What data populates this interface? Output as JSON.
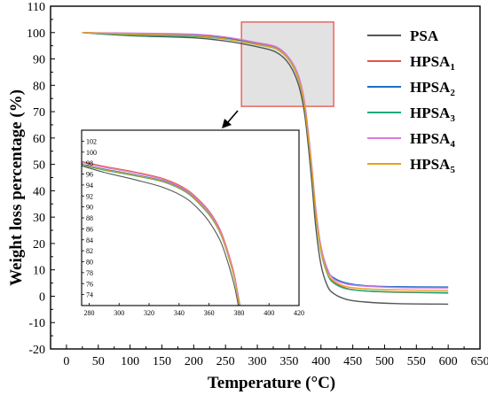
{
  "chart_data": [
    {
      "type": "line",
      "xlabel": "Temperature (°C)",
      "ylabel": "Weight loss percentage (%)",
      "xlim": [
        -25,
        650
      ],
      "ylim": [
        -20,
        110
      ],
      "xticks": [
        0,
        50,
        100,
        150,
        200,
        250,
        300,
        350,
        400,
        450,
        500,
        550,
        600,
        650
      ],
      "yticks": [
        -20,
        -10,
        0,
        10,
        20,
        30,
        40,
        50,
        60,
        70,
        80,
        90,
        100,
        110
      ],
      "legend_position": "top-right",
      "series": [
        {
          "name": "PSA",
          "sub": "",
          "color": "#555555",
          "x": [
            25,
            100,
            200,
            250,
            300,
            330,
            350,
            365,
            375,
            385,
            392,
            400,
            410,
            420,
            440,
            470,
            520,
            600
          ],
          "y": [
            100,
            98.8,
            98,
            96.8,
            94.6,
            92.5,
            88,
            80,
            68,
            45,
            26,
            12,
            4,
            1,
            -1.2,
            -2.2,
            -2.8,
            -3
          ]
        },
        {
          "name": "HPSA",
          "sub": "1",
          "color": "#e8524a",
          "x": [
            25,
            100,
            200,
            250,
            300,
            330,
            350,
            365,
            375,
            385,
            392,
            400,
            410,
            420,
            440,
            470,
            520,
            600
          ],
          "y": [
            100,
            99.6,
            99,
            97.8,
            95.8,
            94.2,
            90,
            83,
            72,
            50,
            32,
            18,
            9,
            5.5,
            3,
            2,
            1.5,
            1.2
          ]
        },
        {
          "name": "HPSA",
          "sub": "2",
          "color": "#1f6fc5",
          "x": [
            25,
            100,
            200,
            250,
            300,
            330,
            350,
            365,
            375,
            385,
            392,
            400,
            410,
            420,
            440,
            470,
            520,
            600
          ],
          "y": [
            100,
            99.5,
            99.2,
            98,
            95.6,
            94,
            89.8,
            82.5,
            71,
            50,
            32,
            18,
            10,
            7,
            5,
            4,
            3.6,
            3.5
          ]
        },
        {
          "name": "HPSA",
          "sub": "3",
          "color": "#1aaa7a",
          "x": [
            25,
            100,
            200,
            250,
            300,
            330,
            350,
            365,
            375,
            385,
            392,
            400,
            410,
            420,
            440,
            470,
            520,
            600
          ],
          "y": [
            100,
            99,
            98.5,
            97.5,
            95.4,
            93.8,
            89.5,
            82,
            70.5,
            49,
            31,
            17,
            8.5,
            5,
            2.8,
            2,
            1.6,
            1.4
          ]
        },
        {
          "name": "HPSA",
          "sub": "4",
          "color": "#d77be0",
          "x": [
            25,
            100,
            200,
            250,
            300,
            330,
            350,
            365,
            375,
            385,
            392,
            400,
            410,
            420,
            440,
            470,
            520,
            600
          ],
          "y": [
            100,
            99.8,
            99.4,
            98.3,
            96.2,
            94.6,
            90.4,
            83.5,
            72.5,
            51,
            33,
            19,
            10.5,
            6.5,
            4.6,
            3.8,
            3.3,
            3.1
          ]
        },
        {
          "name": "HPSA",
          "sub": "5",
          "color": "#e5a21c",
          "x": [
            25,
            100,
            200,
            250,
            300,
            330,
            350,
            365,
            375,
            385,
            392,
            400,
            410,
            420,
            440,
            470,
            520,
            600
          ],
          "y": [
            100,
            99.4,
            98.8,
            97.6,
            95.5,
            93.9,
            89.6,
            82.3,
            70.8,
            49.5,
            31.5,
            17.5,
            9,
            5.8,
            3.6,
            2.8,
            2.4,
            2.2
          ]
        }
      ]
    },
    {
      "type": "line",
      "xlim": [
        275,
        420
      ],
      "ylim": [
        72,
        104
      ],
      "xticks": [
        280,
        300,
        320,
        340,
        360,
        380,
        400,
        420
      ],
      "yticks": [
        74,
        76,
        78,
        80,
        82,
        84,
        86,
        88,
        90,
        92,
        94,
        96,
        98,
        100,
        102
      ],
      "series": [
        {
          "name": "PSA",
          "color": "#555555",
          "x": [
            275,
            290,
            310,
            330,
            345,
            355,
            362,
            368,
            373,
            377,
            379.5
          ],
          "y": [
            97.5,
            96.3,
            95,
            93.5,
            91.5,
            89,
            86.5,
            83.5,
            79.5,
            75.5,
            72
          ]
        },
        {
          "name": "HPSA1",
          "color": "#e8524a",
          "x": [
            275,
            290,
            310,
            330,
            345,
            355,
            362,
            368,
            373,
            377,
            380.5
          ],
          "y": [
            98.3,
            97.4,
            96.4,
            95.1,
            93.2,
            90.8,
            88.5,
            85.5,
            81.5,
            77.5,
            72
          ]
        },
        {
          "name": "HPSA2",
          "color": "#1f6fc5",
          "x": [
            275,
            290,
            310,
            330,
            345,
            355,
            362,
            368,
            373,
            377,
            380.5
          ],
          "y": [
            97.8,
            96.9,
            95.9,
            94.7,
            92.8,
            90.3,
            88,
            85,
            81,
            77,
            72
          ]
        },
        {
          "name": "HPSA3",
          "color": "#1aaa7a",
          "x": [
            275,
            290,
            310,
            330,
            345,
            355,
            362,
            368,
            373,
            377,
            380.2
          ],
          "y": [
            97.6,
            96.7,
            95.7,
            94.5,
            92.6,
            90.1,
            87.8,
            84.8,
            80.8,
            76.8,
            72
          ]
        },
        {
          "name": "HPSA4",
          "color": "#d77be0",
          "x": [
            275,
            290,
            310,
            330,
            345,
            355,
            362,
            368,
            373,
            377,
            380.8
          ],
          "y": [
            98.1,
            97.2,
            96.2,
            94.9,
            93,
            90.6,
            88.3,
            85.3,
            81.3,
            77.3,
            72
          ]
        },
        {
          "name": "HPSA5",
          "color": "#e5a21c",
          "x": [
            275,
            290,
            310,
            330,
            345,
            355,
            362,
            368,
            373,
            377,
            380.3
          ],
          "y": [
            97.7,
            96.8,
            95.8,
            94.6,
            92.7,
            90.2,
            87.9,
            84.9,
            80.9,
            76.9,
            72
          ]
        }
      ]
    }
  ],
  "highlight_region": {
    "x": [
      275,
      420
    ],
    "y": [
      72,
      104
    ]
  }
}
